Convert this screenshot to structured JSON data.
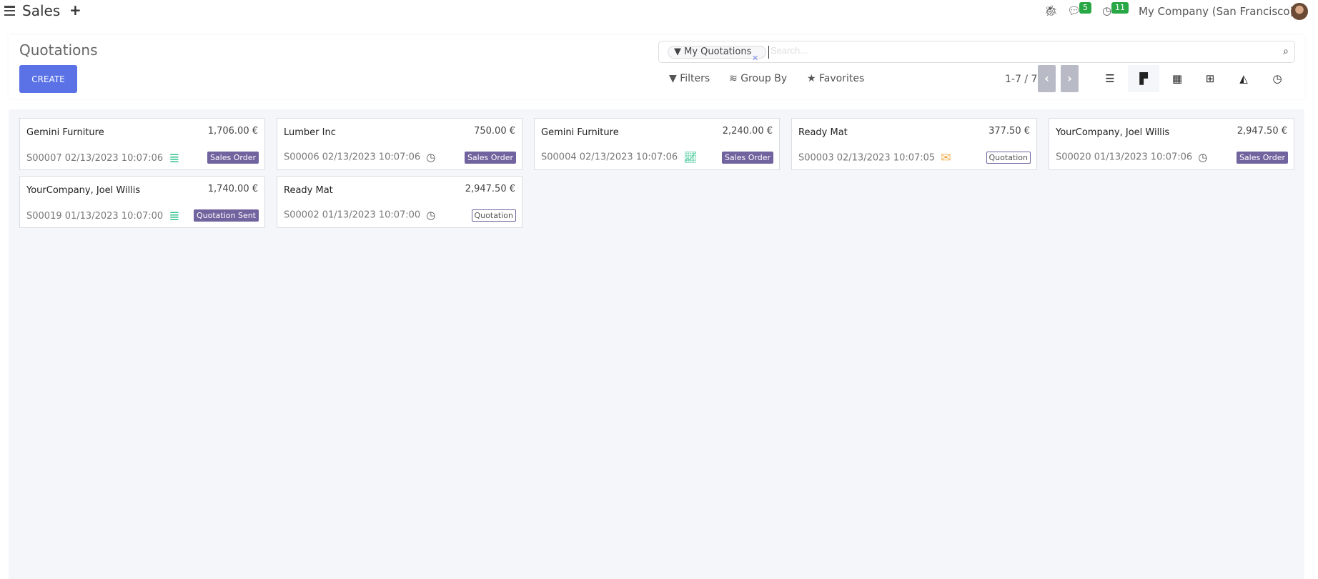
{
  "topbar": {
    "app_name": "Sales",
    "messages_count": "5",
    "activities_count": "11",
    "company": "My Company (San Francisco)"
  },
  "control_panel": {
    "title": "Quotations",
    "create_label": "CREATE",
    "search": {
      "facet": "My Quotations",
      "placeholder": "Search..."
    },
    "filters_label": "Filters",
    "group_by_label": "Group By",
    "favorites_label": "Favorites",
    "pager": "1-7 / 7",
    "views": [
      "list",
      "kanban",
      "calendar",
      "pivot",
      "graph",
      "activity"
    ],
    "active_view": "kanban"
  },
  "colors": {
    "accent": "#5a72e6",
    "tag": "#71639e",
    "activity_green": "#2ec28b",
    "activity_orange": "#f0ad4e"
  },
  "cards": [
    {
      "customer": "Gemini Furniture",
      "amount": "1,706.00 €",
      "ref": "S00007 02/13/2023 10:07:06",
      "activity_icon": "server-icon",
      "status": "Sales Order",
      "filled": true
    },
    {
      "customer": "Lumber Inc",
      "amount": "750.00 €",
      "ref": "S00006 02/13/2023 10:07:06",
      "activity_icon": "clock-icon",
      "status": "Sales Order",
      "filled": true
    },
    {
      "customer": "Gemini Furniture",
      "amount": "2,240.00 €",
      "ref": "S00004 02/13/2023 10:07:06",
      "activity_icon": "line-chart-icon",
      "status": "Sales Order",
      "filled": true
    },
    {
      "customer": "Ready Mat",
      "amount": "377.50 €",
      "ref": "S00003 02/13/2023 10:07:05",
      "activity_icon": "envelope-icon",
      "status": "Quotation",
      "filled": false
    },
    {
      "customer": "YourCompany, Joel Willis",
      "amount": "2,947.50 €",
      "ref": "S00020 01/13/2023 10:07:06",
      "activity_icon": "clock-icon",
      "status": "Sales Order",
      "filled": true
    },
    {
      "customer": "YourCompany, Joel Willis",
      "amount": "1,740.00 €",
      "ref": "S00019 01/13/2023 10:07:00",
      "activity_icon": "server-icon",
      "status": "Quotation Sent",
      "filled": true
    },
    {
      "customer": "Ready Mat",
      "amount": "2,947.50 €",
      "ref": "S00002 01/13/2023 10:07:00",
      "activity_icon": "clock-icon",
      "status": "Quotation",
      "filled": false
    }
  ]
}
